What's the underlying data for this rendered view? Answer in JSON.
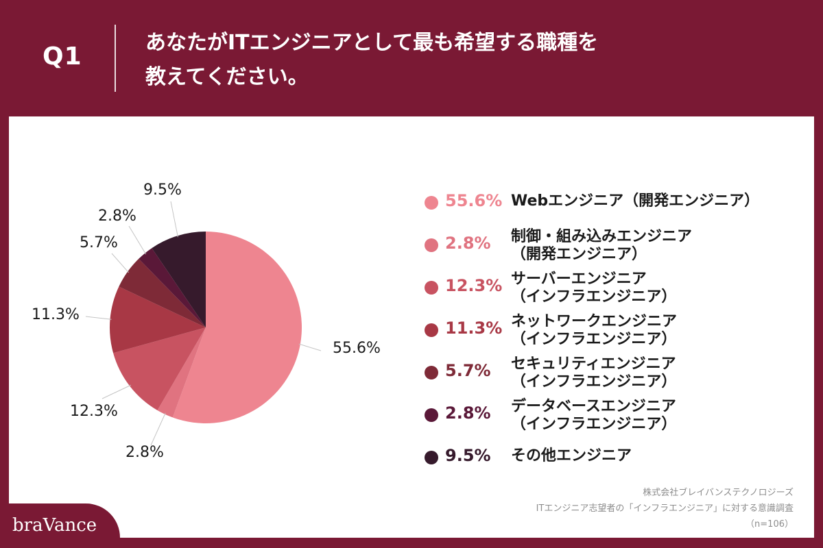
{
  "header": {
    "q_label": "Q1",
    "question_line1": "あなたがITエンジニアとして最も希望する職種を",
    "question_line2": "教えてください。"
  },
  "chart_data": {
    "type": "pie",
    "slices": [
      {
        "label": "55.6%",
        "value": 55.6,
        "legend_pct": "55.6%",
        "name": "Webエンジニア（開発エンジニア）",
        "name_line2": "",
        "color": "#ee8590",
        "pct_color": "#ee8590"
      },
      {
        "label": "2.8%",
        "value": 2.8,
        "legend_pct": "2.8%",
        "name": "制御・組み込みエンジニア",
        "name_line2": "（開発エンジニア）",
        "color": "#e07380",
        "pct_color": "#e07380"
      },
      {
        "label": "12.3%",
        "value": 12.3,
        "legend_pct": "12.3%",
        "name": "サーバーエンジニア",
        "name_line2": "（インフラエンジニア）",
        "color": "#c85361",
        "pct_color": "#c85361"
      },
      {
        "label": "11.3%",
        "value": 11.3,
        "legend_pct": "11.3%",
        "name": "ネットワークエンジニア",
        "name_line2": "（インフラエンジニア）",
        "color": "#a83845",
        "pct_color": "#a83845"
      },
      {
        "label": "5.7%",
        "value": 5.7,
        "legend_pct": "5.7%",
        "name": "セキュリティエンジニア",
        "name_line2": "（インフラエンジニア）",
        "color": "#7e2a37",
        "pct_color": "#7e2a37"
      },
      {
        "label": "2.8%",
        "value": 2.8,
        "legend_pct": "2.8%",
        "name": "データベースエンジニア",
        "name_line2": "（インフラエンジニア）",
        "color": "#5a1838",
        "pct_color": "#5a1838"
      },
      {
        "label": "9.5%",
        "value": 9.5,
        "legend_pct": "9.5%",
        "name": "その他エンジニア",
        "name_line2": "",
        "color": "#361a2c",
        "pct_color": "#361a2c"
      }
    ]
  },
  "source": {
    "company": "株式会社ブレイバンステクノロジーズ",
    "survey": "ITエンジニア志望者の「インフラエンジニア」に対する意識調査",
    "n": "（n=106）"
  },
  "logo": "braVance"
}
